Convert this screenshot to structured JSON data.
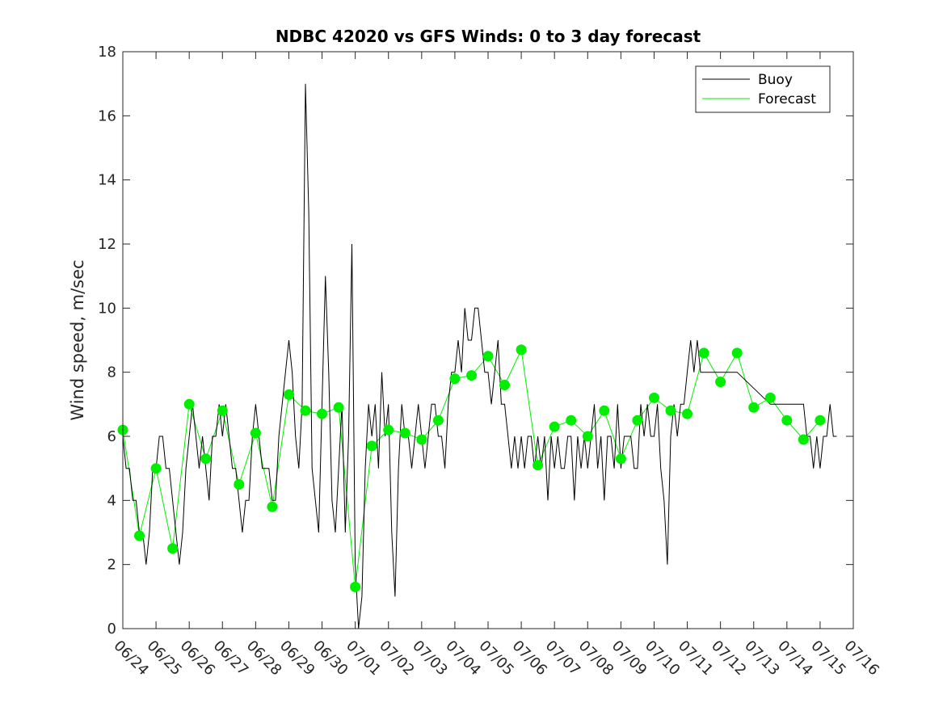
{
  "chart_data": {
    "type": "line",
    "title": "NDBC 42020 vs GFS Winds: 0 to 3 day forecast",
    "ylabel": "Wind speed, m/sec",
    "xlabel": "",
    "x_unit": "day index from 06/24 (0 = 06/24 00:00)",
    "xlim": [
      0,
      22
    ],
    "ylim": [
      0,
      18
    ],
    "yticks": [
      0,
      2,
      4,
      6,
      8,
      10,
      12,
      14,
      16,
      18
    ],
    "xticks": [
      0,
      1,
      2,
      3,
      4,
      5,
      6,
      7,
      8,
      9,
      10,
      11,
      12,
      13,
      14,
      15,
      16,
      17,
      18,
      19,
      20,
      21,
      22
    ],
    "xtick_labels": [
      "06/24",
      "06/25",
      "06/26",
      "06/27",
      "06/28",
      "06/29",
      "06/30",
      "07/01",
      "07/02",
      "07/03",
      "07/04",
      "07/05",
      "07/06",
      "07/07",
      "07/08",
      "07/09",
      "07/10",
      "07/11",
      "07/12",
      "07/13",
      "07/14",
      "07/15",
      "07/16"
    ],
    "grid": false,
    "legend": {
      "position": "top-right",
      "entries": [
        "Buoy",
        "Forecast"
      ]
    },
    "colors": {
      "buoy": "#000000",
      "forecast": "#00ee00",
      "axes": "#262626"
    },
    "series": [
      {
        "name": "Buoy",
        "x": [
          0,
          0.1,
          0.2,
          0.3,
          0.4,
          0.5,
          0.6,
          0.7,
          0.8,
          0.9,
          1,
          1.1,
          1.2,
          1.3,
          1.4,
          1.5,
          1.6,
          1.7,
          1.8,
          1.9,
          2,
          2.1,
          2.2,
          2.3,
          2.4,
          2.5,
          2.6,
          2.7,
          2.8,
          2.9,
          3,
          3.1,
          3.2,
          3.3,
          3.4,
          3.5,
          3.6,
          3.7,
          3.8,
          3.9,
          4,
          4.1,
          4.2,
          4.3,
          4.4,
          4.5,
          4.6,
          4.7,
          4.8,
          4.9,
          5,
          5.1,
          5.2,
          5.3,
          5.4,
          5.5,
          5.6,
          5.7,
          5.8,
          5.9,
          6,
          6.1,
          6.2,
          6.3,
          6.4,
          6.5,
          6.6,
          6.7,
          6.8,
          6.9,
          7,
          7.1,
          7.2,
          7.3,
          7.4,
          7.5,
          7.6,
          7.7,
          7.8,
          7.9,
          8,
          8.1,
          8.2,
          8.3,
          8.4,
          8.5,
          8.6,
          8.7,
          8.8,
          8.9,
          9,
          9.1,
          9.2,
          9.3,
          9.4,
          9.5,
          9.6,
          9.7,
          9.8,
          9.9,
          10,
          10.1,
          10.2,
          10.3,
          10.4,
          10.5,
          10.6,
          10.7,
          10.8,
          10.9,
          11,
          11.1,
          11.2,
          11.3,
          11.4,
          11.5,
          11.6,
          11.7,
          11.8,
          11.9,
          12,
          12.1,
          12.2,
          12.3,
          12.4,
          12.5,
          12.6,
          12.7,
          12.8,
          12.9,
          13,
          13.1,
          13.2,
          13.3,
          13.4,
          13.5,
          13.6,
          13.7,
          13.8,
          13.9,
          14,
          14.1,
          14.2,
          14.3,
          14.4,
          14.5,
          14.6,
          14.7,
          14.8,
          14.9,
          15,
          15.1,
          15.2,
          15.3,
          15.4,
          15.5,
          15.6,
          15.7,
          15.8,
          15.9,
          16,
          16.1,
          16.2,
          16.3,
          16.4,
          16.5,
          16.6,
          16.7,
          16.8,
          16.9,
          17,
          17.1,
          17.2,
          17.3,
          17.4,
          17.5,
          18.5,
          19.5,
          20.5,
          20.6,
          20.7,
          20.8,
          20.9,
          21,
          21.1,
          21.2,
          21.3,
          21.4,
          21.5
        ],
        "y": [
          6,
          5,
          5,
          4,
          4,
          3,
          3,
          2,
          3,
          5,
          5,
          6,
          6,
          5,
          5,
          4,
          3,
          2,
          3,
          5,
          6,
          7,
          6,
          5,
          6,
          5,
          4,
          6,
          6,
          7,
          6,
          7,
          6,
          5,
          5,
          4,
          3,
          4,
          4,
          6,
          7,
          6,
          5,
          5,
          5,
          4,
          4,
          6,
          7,
          8,
          9,
          8,
          6,
          5,
          7,
          17,
          13,
          5,
          4,
          3,
          7,
          11,
          8,
          4,
          3,
          5,
          7,
          3,
          6,
          12,
          2,
          0,
          1,
          5,
          7,
          6,
          7,
          5,
          8,
          6,
          7,
          3,
          1,
          5,
          7,
          6,
          6,
          5,
          6,
          7,
          6,
          5,
          6,
          7,
          7,
          6,
          6,
          5,
          7,
          8,
          8,
          9,
          8,
          10,
          9,
          9,
          10,
          10,
          9,
          8,
          8,
          7,
          8,
          9,
          7,
          7,
          6,
          5,
          6,
          5,
          6,
          5,
          6,
          6,
          5,
          6,
          5,
          6,
          4,
          6,
          5,
          6,
          5,
          5,
          6,
          6,
          4,
          6,
          5,
          6,
          5,
          6,
          7,
          5,
          6,
          4,
          6,
          6,
          5,
          7,
          5,
          6,
          6,
          6,
          5,
          5,
          7,
          6,
          7,
          6,
          6,
          7,
          5,
          4,
          2,
          6,
          7,
          6,
          7,
          7,
          8,
          9,
          8,
          9,
          8,
          8,
          8,
          7,
          7,
          6,
          6,
          5,
          6,
          5,
          6,
          6,
          7,
          6,
          6
        ]
      },
      {
        "name": "Forecast",
        "x": [
          0,
          0.5,
          1,
          1.5,
          2,
          2.5,
          3,
          3.5,
          4,
          4.5,
          5,
          5.5,
          6,
          6.5,
          7,
          7.5,
          8,
          8.5,
          9,
          9.5,
          10,
          10.5,
          11,
          11.5,
          12,
          12.5,
          13,
          13.5,
          14,
          14.5,
          15,
          15.5,
          16,
          16.5,
          17,
          17.5,
          18,
          18.5,
          19,
          19.5,
          20,
          20.5,
          21
        ],
        "y": [
          6.2,
          2.9,
          5,
          2.5,
          7,
          5.3,
          6.8,
          4.5,
          6.1,
          3.8,
          7.3,
          6.8,
          6.7,
          6.9,
          1.3,
          5.7,
          6.2,
          6.1,
          5.9,
          6.5,
          7.8,
          7.9,
          8.5,
          7.6,
          8.7,
          5.1,
          6.3,
          6.5,
          6,
          6.8,
          5.3,
          6.5,
          7.2,
          6.8,
          6.7,
          8.6,
          7.7,
          8.6,
          6.9,
          7.2,
          6.5,
          5.9,
          6.5
        ]
      }
    ],
    "forecast_markers": {
      "x": [
        0,
        0.5,
        1,
        1.5,
        2,
        2.5,
        3,
        3.5,
        4,
        4.5,
        5,
        5.5,
        6,
        6.5,
        7,
        7.5,
        8,
        8.5,
        9,
        9.5,
        10,
        10.5,
        11,
        11.5,
        12,
        12.5,
        13,
        13.5,
        14,
        14.5,
        15,
        15.5,
        16,
        16.5,
        17,
        17.5,
        18,
        18.5,
        19,
        19.5,
        20,
        20.5,
        21
      ],
      "y": [
        6.2,
        2.9,
        5,
        2.5,
        7,
        5.3,
        6.8,
        4.5,
        6.1,
        3.8,
        7.3,
        6.8,
        6.7,
        6.9,
        1.3,
        5.7,
        6.2,
        6.1,
        5.9,
        6.5,
        7.8,
        7.9,
        8.5,
        7.6,
        8.7,
        5.1,
        6.3,
        6.5,
        6,
        6.8,
        5.3,
        6.5,
        7.2,
        6.8,
        6.7,
        8.6,
        7.7,
        8.6,
        6.9,
        7.2,
        6.5,
        5.9,
        6.5
      ]
    }
  }
}
